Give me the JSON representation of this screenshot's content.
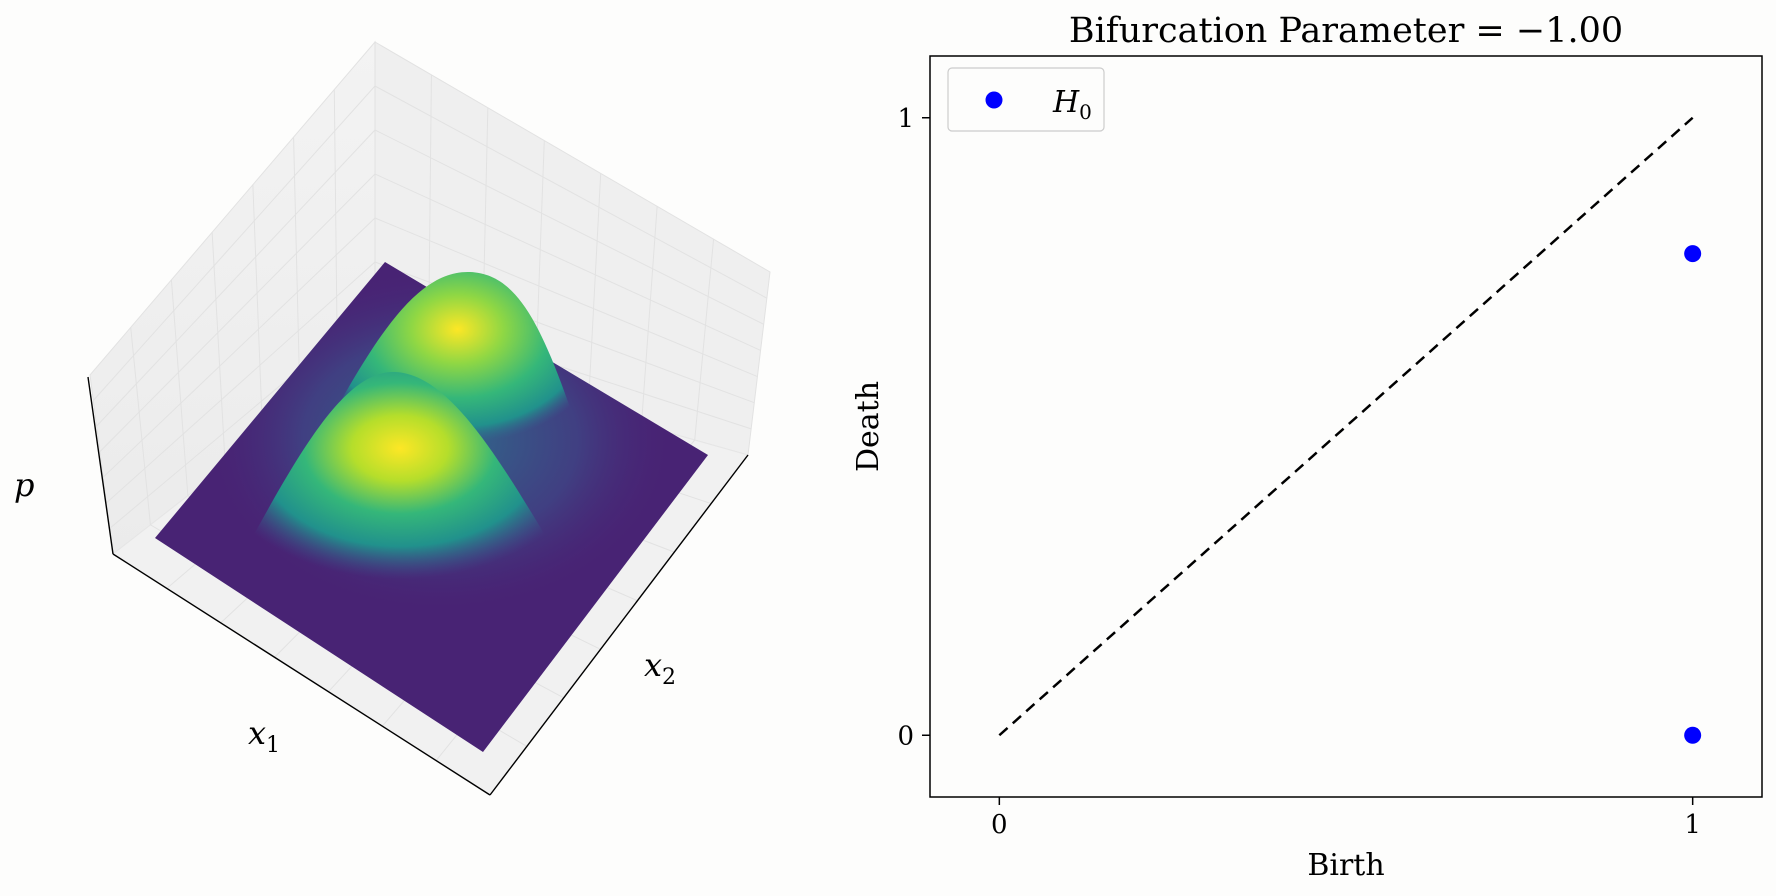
{
  "chart_data": [
    {
      "type": "surface",
      "zlabel": "p",
      "xlabel": "x",
      "xlabel_sub": "1",
      "ylabel": "x",
      "ylabel_sub": "2",
      "colormap": "viridis",
      "colormap_stops": [
        "#440154",
        "#3b528b",
        "#21918c",
        "#5ec962",
        "#fde725"
      ],
      "peaks": [
        {
          "label": "front peak"
        },
        {
          "label": "back peak"
        }
      ],
      "grid": true
    },
    {
      "type": "scatter",
      "title": "Bifurcation Parameter = −1.00",
      "xlabel": "Birth",
      "ylabel": "Death",
      "xlim": [
        -0.1,
        1.1
      ],
      "ylim": [
        -0.1,
        1.1
      ],
      "xticks": [
        0,
        1
      ],
      "xtick_labels": [
        "0",
        "1"
      ],
      "yticks": [
        0,
        1
      ],
      "ytick_labels": [
        "0",
        "1"
      ],
      "diagonal": {
        "from": [
          0,
          0
        ],
        "to": [
          1,
          1
        ],
        "style": "dashed",
        "color": "#000000"
      },
      "legend_position": "top-left",
      "series": [
        {
          "name": "H",
          "name_sub": "0",
          "color": "#0000ff",
          "points": [
            {
              "x": 1.0,
              "y": 0.78
            },
            {
              "x": 1.0,
              "y": 0.0
            }
          ]
        }
      ]
    }
  ]
}
